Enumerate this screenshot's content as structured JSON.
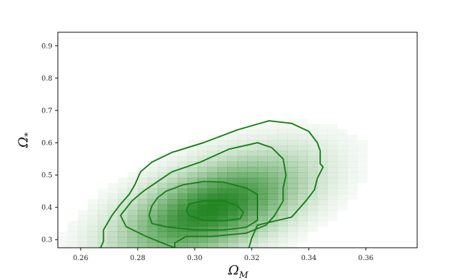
{
  "chart_data": {
    "type": "heatmap",
    "title": "",
    "xlabel": "Ω",
    "xlabel_sub": "M",
    "ylabel": "Ω",
    "ylabel_sub": "*",
    "xlim": [
      0.252,
      0.378
    ],
    "ylim": [
      0.275,
      0.942
    ],
    "x_ticks": [
      0.26,
      0.28,
      0.3,
      0.32,
      0.34,
      0.36
    ],
    "x_tick_labels": [
      "0.26",
      "0.28",
      "0.30",
      "0.32",
      "0.34",
      "0.36"
    ],
    "y_ticks": [
      0.3,
      0.4,
      0.5,
      0.6,
      0.7,
      0.8,
      0.9
    ],
    "y_tick_labels": [
      "0.3",
      "0.4",
      "0.5",
      "0.6",
      "0.7",
      "0.8",
      "0.9"
    ],
    "grid": false,
    "color": "#1a7f1a",
    "density_peak": {
      "x": 0.306,
      "y": 0.395
    },
    "contours": [
      {
        "name": "level-1",
        "points": [
          [
            0.267,
            0.275
          ],
          [
            0.268,
            0.295
          ],
          [
            0.268,
            0.33
          ],
          [
            0.271,
            0.375
          ],
          [
            0.274,
            0.41
          ],
          [
            0.277,
            0.44
          ],
          [
            0.279,
            0.47
          ],
          [
            0.281,
            0.51
          ],
          [
            0.285,
            0.54
          ],
          [
            0.292,
            0.57
          ],
          [
            0.303,
            0.6
          ],
          [
            0.315,
            0.64
          ],
          [
            0.326,
            0.668
          ],
          [
            0.334,
            0.66
          ],
          [
            0.34,
            0.635
          ],
          [
            0.343,
            0.6
          ],
          [
            0.344,
            0.575
          ],
          [
            0.344,
            0.535
          ],
          [
            0.345,
            0.525
          ],
          [
            0.343,
            0.49
          ],
          [
            0.342,
            0.455
          ],
          [
            0.339,
            0.42
          ],
          [
            0.334,
            0.37
          ],
          [
            0.322,
            0.345
          ],
          [
            0.32,
            0.305
          ],
          [
            0.319,
            0.275
          ]
        ]
      },
      {
        "name": "level-2",
        "points": [
          [
            0.293,
            0.275
          ],
          [
            0.29,
            0.285
          ],
          [
            0.283,
            0.31
          ],
          [
            0.276,
            0.34
          ],
          [
            0.274,
            0.375
          ],
          [
            0.278,
            0.42
          ],
          [
            0.282,
            0.45
          ],
          [
            0.287,
            0.48
          ],
          [
            0.292,
            0.51
          ],
          [
            0.302,
            0.54
          ],
          [
            0.312,
            0.58
          ],
          [
            0.322,
            0.6
          ],
          [
            0.327,
            0.585
          ],
          [
            0.331,
            0.55
          ],
          [
            0.332,
            0.5
          ],
          [
            0.331,
            0.46
          ],
          [
            0.331,
            0.42
          ],
          [
            0.328,
            0.375
          ],
          [
            0.325,
            0.345
          ],
          [
            0.318,
            0.32
          ],
          [
            0.306,
            0.31
          ],
          [
            0.297,
            0.31
          ],
          [
            0.293,
            0.29
          ],
          [
            0.293,
            0.275
          ]
        ]
      },
      {
        "name": "level-3",
        "points": [
          [
            0.284,
            0.375
          ],
          [
            0.285,
            0.35
          ],
          [
            0.29,
            0.34
          ],
          [
            0.3,
            0.33
          ],
          [
            0.31,
            0.33
          ],
          [
            0.318,
            0.338
          ],
          [
            0.322,
            0.36
          ],
          [
            0.322,
            0.4
          ],
          [
            0.322,
            0.44
          ],
          [
            0.318,
            0.46
          ],
          [
            0.31,
            0.478
          ],
          [
            0.303,
            0.48
          ],
          [
            0.296,
            0.47
          ],
          [
            0.29,
            0.45
          ],
          [
            0.287,
            0.43
          ],
          [
            0.285,
            0.405
          ],
          [
            0.284,
            0.375
          ]
        ]
      },
      {
        "name": "level-4",
        "points": [
          [
            0.297,
            0.39
          ],
          [
            0.298,
            0.375
          ],
          [
            0.303,
            0.36
          ],
          [
            0.31,
            0.358
          ],
          [
            0.316,
            0.365
          ],
          [
            0.317,
            0.385
          ],
          [
            0.315,
            0.405
          ],
          [
            0.31,
            0.42
          ],
          [
            0.303,
            0.42
          ],
          [
            0.298,
            0.41
          ],
          [
            0.297,
            0.39
          ]
        ]
      }
    ]
  },
  "labels": {
    "xlabel_main": "Ω",
    "xlabel_sub": "M",
    "ylabel_main": "Ω",
    "ylabel_sub": "*"
  }
}
